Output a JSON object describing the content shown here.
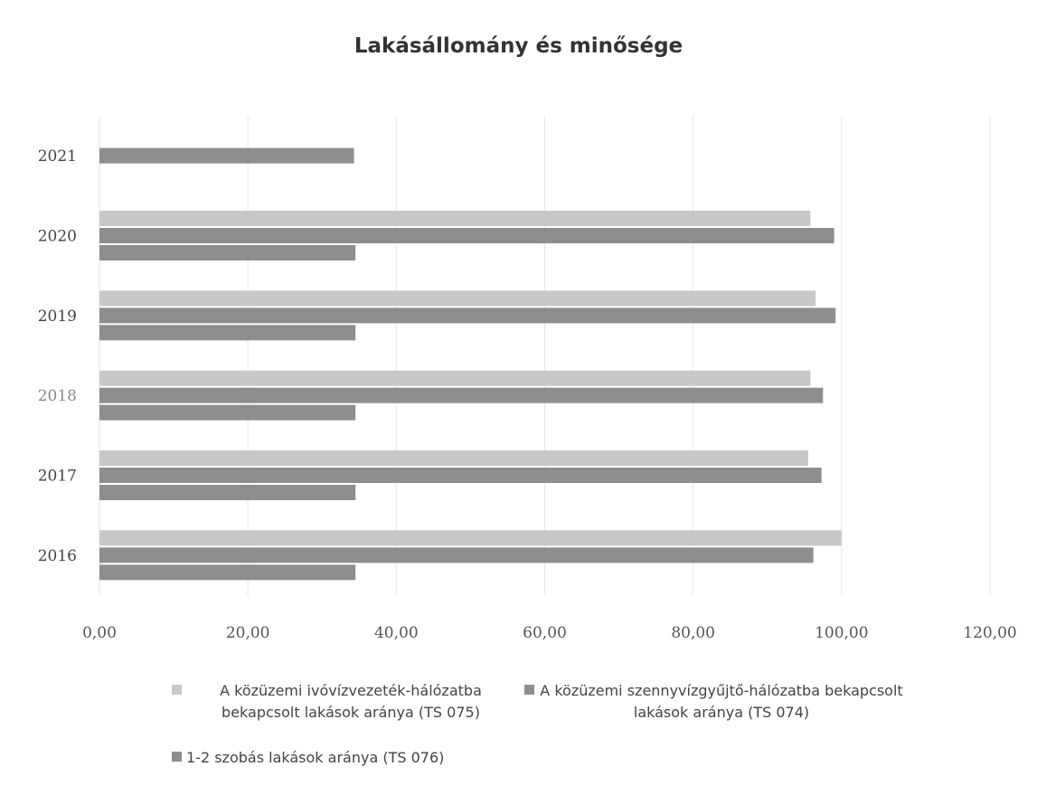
{
  "chart_data": {
    "type": "bar",
    "orientation": "horizontal",
    "title": "Lakásállomány és minősége",
    "categories": [
      "2016",
      "2017",
      "2018",
      "2019",
      "2020",
      "2021"
    ],
    "series": [
      {
        "name": "A közüzemi ivóvízvezeték-hálózatba bekapcsolt lakások aránya (TS 075)",
        "color": "#c8c8c8",
        "values": [
          100.0,
          95.5,
          95.8,
          96.5,
          95.8,
          null
        ]
      },
      {
        "name": "A közüzemi szennyvízgyűjtő-hálózatba bekapcsolt lakások aránya (TS 074)",
        "color": "#8e8e8e",
        "values": [
          96.2,
          97.3,
          97.5,
          99.2,
          99.0,
          null
        ]
      },
      {
        "name": "1-2 szobás lakások aránya (TS 076)",
        "color": "#8e8e8e",
        "values": [
          34.5,
          34.5,
          34.5,
          34.5,
          34.5,
          34.3
        ]
      }
    ],
    "xlim": [
      0,
      120
    ],
    "xticks": [
      "0,00",
      "20,00",
      "40,00",
      "60,00",
      "80,00",
      "100,00",
      "120,00"
    ],
    "xlabel": "",
    "ylabel": "",
    "grid": "vertical",
    "legend": "bottom"
  }
}
